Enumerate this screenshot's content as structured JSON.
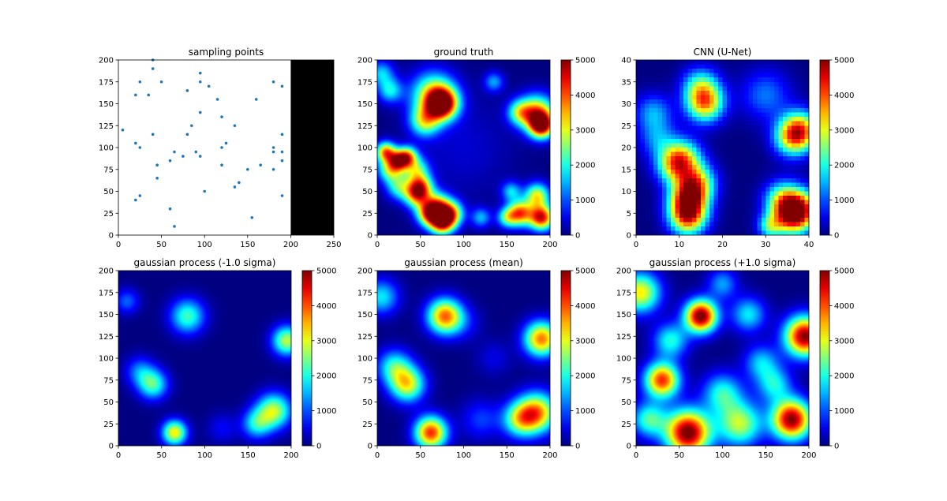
{
  "chart_data": [
    {
      "type": "scatter",
      "title": "sampling points",
      "xlabel": "",
      "ylabel": "",
      "xlim": [
        0,
        250
      ],
      "ylim": [
        0,
        200
      ],
      "xticks": [
        "0",
        "50",
        "100",
        "150",
        "200",
        "250"
      ],
      "yticks": [
        "0",
        "25",
        "50",
        "75",
        "100",
        "125",
        "150",
        "175",
        "200"
      ],
      "masked_region": {
        "x": [
          200,
          250
        ],
        "y": [
          0,
          200
        ],
        "color": "#000000"
      },
      "marker_color": "#1f77b4",
      "points": [
        [
          5,
          120
        ],
        [
          20,
          160
        ],
        [
          25,
          175
        ],
        [
          35,
          160
        ],
        [
          40,
          200
        ],
        [
          40,
          190
        ],
        [
          40,
          115
        ],
        [
          20,
          105
        ],
        [
          25,
          100
        ],
        [
          45,
          80
        ],
        [
          45,
          65
        ],
        [
          25,
          45
        ],
        [
          20,
          40
        ],
        [
          50,
          175
        ],
        [
          60,
          85
        ],
        [
          65,
          95
        ],
        [
          75,
          90
        ],
        [
          80,
          115
        ],
        [
          85,
          125
        ],
        [
          80,
          165
        ],
        [
          90,
          95
        ],
        [
          95,
          90
        ],
        [
          95,
          140
        ],
        [
          95,
          175
        ],
        [
          95,
          185
        ],
        [
          105,
          170
        ],
        [
          100,
          50
        ],
        [
          60,
          30
        ],
        [
          65,
          10
        ],
        [
          115,
          155
        ],
        [
          120,
          135
        ],
        [
          120,
          100
        ],
        [
          125,
          105
        ],
        [
          120,
          80
        ],
        [
          135,
          125
        ],
        [
          135,
          55
        ],
        [
          140,
          60
        ],
        [
          150,
          75
        ],
        [
          155,
          20
        ],
        [
          160,
          155
        ],
        [
          165,
          80
        ],
        [
          180,
          175
        ],
        [
          180,
          100
        ],
        [
          180,
          95
        ],
        [
          180,
          75
        ],
        [
          190,
          170
        ],
        [
          190,
          115
        ],
        [
          190,
          95
        ],
        [
          190,
          85
        ],
        [
          190,
          45
        ]
      ]
    },
    {
      "type": "heatmap",
      "title": "ground truth",
      "xlim": [
        0,
        200
      ],
      "ylim": [
        0,
        200
      ],
      "xticks": [
        "0",
        "50",
        "100",
        "150",
        "200"
      ],
      "yticks": [
        "0",
        "25",
        "50",
        "75",
        "100",
        "125",
        "150",
        "175",
        "200"
      ],
      "colormap": "jet",
      "vmin": 0,
      "vmax": 5000,
      "colorbar_ticks": [
        "0",
        "1000",
        "2000",
        "3000",
        "4000",
        "5000"
      ],
      "hotspots": [
        [
          75,
          150,
          4800,
          12
        ],
        [
          65,
          160,
          3000,
          18
        ],
        [
          55,
          130,
          2500,
          12
        ],
        [
          15,
          165,
          1800,
          10
        ],
        [
          5,
          185,
          1600,
          10
        ],
        [
          135,
          175,
          1400,
          8
        ],
        [
          190,
          125,
          4500,
          10
        ],
        [
          185,
          140,
          3500,
          14
        ],
        [
          165,
          140,
          2200,
          10
        ],
        [
          10,
          95,
          3600,
          8
        ],
        [
          25,
          85,
          3300,
          8
        ],
        [
          35,
          90,
          3000,
          8
        ],
        [
          15,
          75,
          2600,
          10
        ],
        [
          45,
          75,
          2200,
          10
        ],
        [
          50,
          55,
          3300,
          10
        ],
        [
          45,
          45,
          2600,
          10
        ],
        [
          25,
          55,
          2000,
          10
        ],
        [
          60,
          25,
          3800,
          10
        ],
        [
          75,
          15,
          4500,
          10
        ],
        [
          85,
          25,
          3300,
          10
        ],
        [
          70,
          35,
          2600,
          10
        ],
        [
          165,
          25,
          3800,
          10
        ],
        [
          190,
          20,
          4500,
          10
        ],
        [
          185,
          45,
          3000,
          10
        ],
        [
          150,
          20,
          2000,
          8
        ],
        [
          155,
          50,
          1600,
          8
        ],
        [
          120,
          20,
          1500,
          8
        ],
        [
          100,
          100,
          400,
          40
        ]
      ]
    },
    {
      "type": "heatmap",
      "title": "CNN (U-Net)",
      "xlim": [
        0,
        40
      ],
      "ylim": [
        0,
        40
      ],
      "xticks": [
        "0",
        "10",
        "20",
        "30",
        "40"
      ],
      "yticks": [
        "0",
        "5",
        "10",
        "15",
        "20",
        "25",
        "30",
        "35",
        "40"
      ],
      "colormap": "jet",
      "vmin": 0,
      "vmax": 5000,
      "colorbar_ticks": [
        "0",
        "1000",
        "2000",
        "3000",
        "4000",
        "5000"
      ],
      "hotspots": [
        [
          16,
          30,
          3300,
          3
        ],
        [
          15,
          34,
          2000,
          3
        ],
        [
          12,
          8,
          3800,
          3
        ],
        [
          12,
          4,
          3500,
          3
        ],
        [
          14,
          12,
          3000,
          3
        ],
        [
          9,
          16,
          2800,
          3
        ],
        [
          11,
          18,
          2000,
          3
        ],
        [
          5,
          22,
          1200,
          3
        ],
        [
          4,
          28,
          1400,
          3
        ],
        [
          38,
          24,
          3300,
          3
        ],
        [
          36,
          22,
          2200,
          3
        ],
        [
          38,
          6,
          3300,
          3
        ],
        [
          36,
          4,
          3000,
          3
        ],
        [
          34,
          8,
          2500,
          3
        ],
        [
          31,
          2,
          2000,
          2
        ],
        [
          30,
          32,
          1200,
          4
        ]
      ]
    },
    {
      "type": "heatmap",
      "title": "gaussian process (-1.0 sigma)",
      "xlim": [
        0,
        200
      ],
      "ylim": [
        0,
        200
      ],
      "xticks": [
        "0",
        "50",
        "100",
        "150",
        "200"
      ],
      "yticks": [
        "0",
        "25",
        "50",
        "75",
        "100",
        "125",
        "150",
        "175",
        "200"
      ],
      "colormap": "jet",
      "vmin": 0,
      "vmax": 5000,
      "colorbar_ticks": [
        "0",
        "1000",
        "2000",
        "3000",
        "4000",
        "5000"
      ],
      "hotspots": [
        [
          80,
          148,
          2200,
          14
        ],
        [
          195,
          120,
          2800,
          12
        ],
        [
          65,
          15,
          3200,
          10
        ],
        [
          40,
          70,
          2200,
          12
        ],
        [
          25,
          85,
          1200,
          12
        ],
        [
          180,
          40,
          2800,
          14
        ],
        [
          160,
          25,
          1800,
          12
        ],
        [
          10,
          165,
          1100,
          10
        ],
        [
          120,
          20,
          600,
          12
        ]
      ]
    },
    {
      "type": "heatmap",
      "title": "gaussian process (mean)",
      "xlim": [
        0,
        200
      ],
      "ylim": [
        0,
        200
      ],
      "xticks": [
        "0",
        "50",
        "100",
        "150",
        "200"
      ],
      "yticks": [
        "0",
        "25",
        "50",
        "75",
        "100",
        "125",
        "150",
        "175",
        "200"
      ],
      "colormap": "jet",
      "vmin": 0,
      "vmax": 5000,
      "colorbar_ticks": [
        "0",
        "1000",
        "2000",
        "3000",
        "4000",
        "5000"
      ],
      "hotspots": [
        [
          78,
          148,
          3800,
          14
        ],
        [
          190,
          122,
          3800,
          14
        ],
        [
          62,
          15,
          4200,
          13
        ],
        [
          35,
          70,
          3000,
          14
        ],
        [
          20,
          90,
          2000,
          14
        ],
        [
          185,
          38,
          3500,
          16
        ],
        [
          165,
          30,
          2400,
          14
        ],
        [
          5,
          170,
          1800,
          14
        ],
        [
          120,
          30,
          900,
          16
        ],
        [
          100,
          140,
          600,
          14
        ],
        [
          135,
          100,
          500,
          14
        ]
      ]
    },
    {
      "type": "heatmap",
      "title": "gaussian process (+1.0 sigma)",
      "xlim": [
        0,
        200
      ],
      "ylim": [
        0,
        200
      ],
      "xticks": [
        "0",
        "50",
        "100",
        "150",
        "200"
      ],
      "yticks": [
        "0",
        "25",
        "50",
        "75",
        "100",
        "125",
        "150",
        "175",
        "200"
      ],
      "colormap": "jet",
      "vmin": 0,
      "vmax": 5000,
      "colorbar_ticks": [
        "0",
        "1000",
        "2000",
        "3000",
        "4000",
        "5000"
      ],
      "hotspots": [
        [
          75,
          148,
          5200,
          13
        ],
        [
          195,
          125,
          5000,
          16
        ],
        [
          60,
          15,
          5200,
          18
        ],
        [
          30,
          75,
          4200,
          14
        ],
        [
          180,
          30,
          5000,
          16
        ],
        [
          5,
          175,
          3200,
          16
        ],
        [
          120,
          25,
          2800,
          18
        ],
        [
          100,
          60,
          2000,
          16
        ],
        [
          130,
          150,
          1800,
          14
        ],
        [
          145,
          95,
          1600,
          14
        ],
        [
          15,
          30,
          2200,
          14
        ],
        [
          40,
          120,
          2000,
          14
        ],
        [
          160,
          70,
          1800,
          14
        ],
        [
          100,
          185,
          1400,
          12
        ]
      ]
    }
  ]
}
